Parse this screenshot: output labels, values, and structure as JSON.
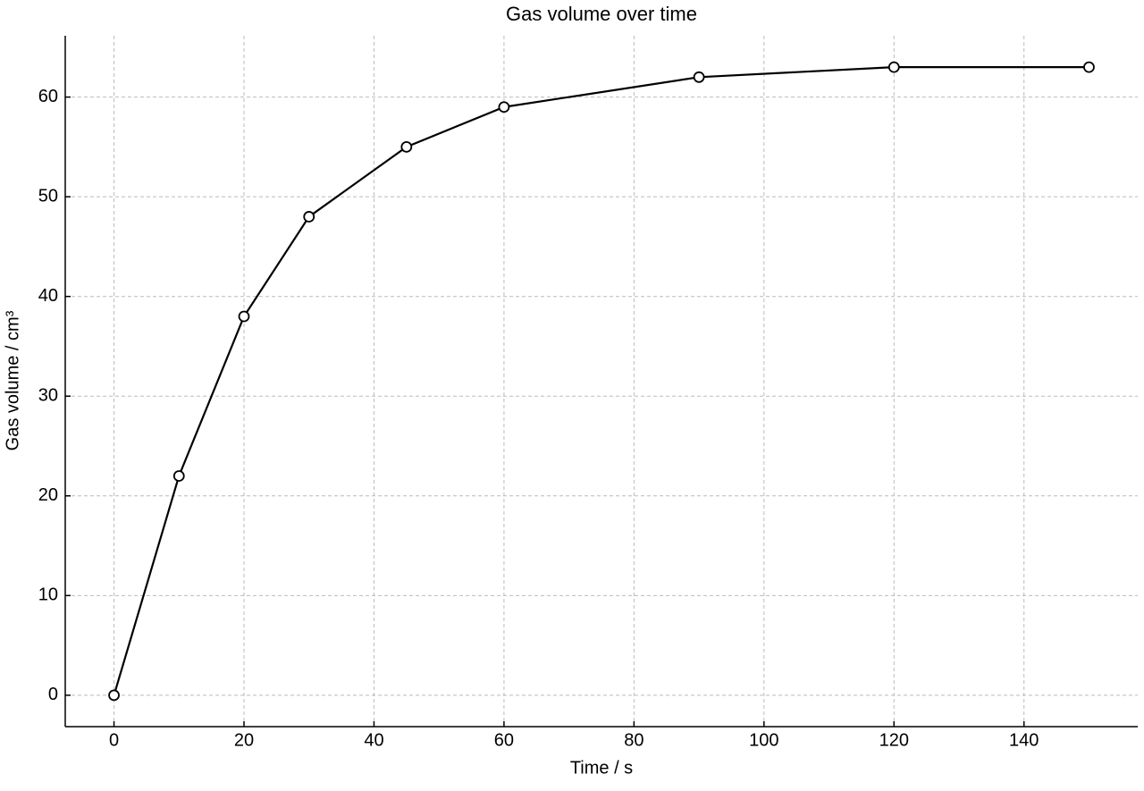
{
  "chart_data": {
    "type": "line",
    "title": "Gas volume over time",
    "x_label": "Time / s",
    "y_label": "Gas volume / cm³",
    "x": [
      0,
      10,
      20,
      30,
      45,
      60,
      90,
      120,
      150
    ],
    "values": [
      0,
      22,
      38,
      48,
      55,
      59,
      62,
      63,
      63
    ],
    "color": "#000000",
    "marker_fill": "#ffffff",
    "xlim": [
      -7.5,
      157.5
    ],
    "xticks": [
      0,
      20,
      40,
      60,
      80,
      100,
      120,
      140
    ],
    "ylim": [
      -3.15,
      66.15
    ],
    "yticks": [
      0,
      10,
      20,
      30,
      40,
      50,
      60
    ],
    "grid": true
  }
}
